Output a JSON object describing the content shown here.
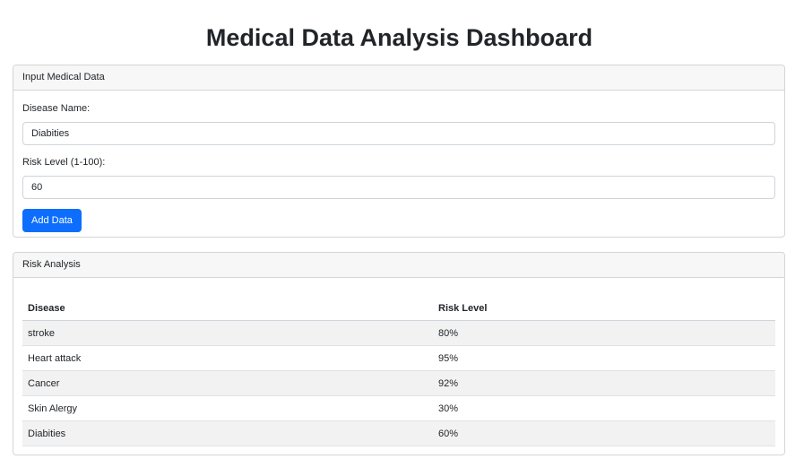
{
  "page": {
    "title": "Medical Data Analysis Dashboard"
  },
  "input_card": {
    "header": "Input Medical Data",
    "disease_label": "Disease Name:",
    "disease_value": "Diabities",
    "risk_label": "Risk Level (1-100):",
    "risk_value": "60",
    "add_button": "Add Data"
  },
  "risk_card": {
    "header": "Risk Analysis",
    "columns": [
      "Disease",
      "Risk Level"
    ],
    "rows": [
      {
        "disease": "stroke",
        "risk": "80%"
      },
      {
        "disease": "Heart attack",
        "risk": "95%"
      },
      {
        "disease": "Cancer",
        "risk": "92%"
      },
      {
        "disease": "Skin Alergy",
        "risk": "30%"
      },
      {
        "disease": "Diabities",
        "risk": "60%"
      }
    ]
  },
  "colors": {
    "primary": "#0d6efd",
    "header_bg": "#f7f7f7",
    "stripe_bg": "#f2f2f2"
  }
}
